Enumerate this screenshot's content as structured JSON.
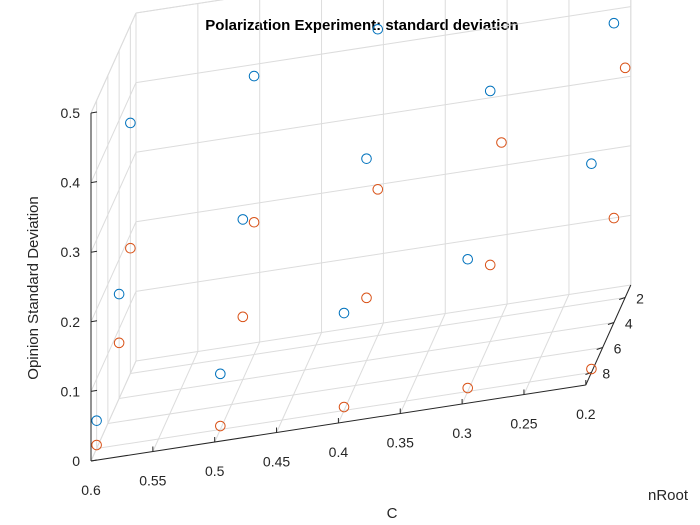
{
  "chart_data": {
    "type": "scatter",
    "title": "Polarization Experiment: standard deviation",
    "xlabel": "C",
    "ylabel": "nRoot",
    "zlabel": "Opinion Standard Deviation",
    "xlim": [
      0.2,
      0.6
    ],
    "ylim": [
      1,
      9
    ],
    "zlim": [
      0,
      0.5
    ],
    "x_ticks": [
      "0.6",
      "0.55",
      "0.5",
      "0.45",
      "0.4",
      "0.35",
      "0.3",
      "0.25",
      "0.2"
    ],
    "y_ticks": [
      "2",
      "4",
      "6",
      "8"
    ],
    "z_ticks": [
      "0",
      "0.1",
      "0.2",
      "0.3",
      "0.4",
      "0.5"
    ],
    "grid": true,
    "series": [
      {
        "color": "#0072BD",
        "points": [
          {
            "x": 0.6,
            "y": 8,
            "z": 0.04
          },
          {
            "x": 0.5,
            "y": 8,
            "z": 0.08
          },
          {
            "x": 0.4,
            "y": 8,
            "z": 0.14
          },
          {
            "x": 0.3,
            "y": 8,
            "z": 0.19
          },
          {
            "x": 0.2,
            "y": 8,
            "z": 0.3
          },
          {
            "x": 0.6,
            "y": 4,
            "z": 0.15
          },
          {
            "x": 0.5,
            "y": 4,
            "z": 0.23
          },
          {
            "x": 0.4,
            "y": 4,
            "z": 0.29
          },
          {
            "x": 0.3,
            "y": 4,
            "z": 0.36
          },
          {
            "x": 0.2,
            "y": 4,
            "z": 0.43
          },
          {
            "x": 0.6,
            "y": 2,
            "z": 0.36
          },
          {
            "x": 0.5,
            "y": 2,
            "z": 0.4
          },
          {
            "x": 0.4,
            "y": 2,
            "z": 0.44
          },
          {
            "x": 0.3,
            "y": 2,
            "z": 0.5
          },
          {
            "x": 0.2,
            "y": 2,
            "z": 0.61
          }
        ]
      },
      {
        "color": "#D95319",
        "points": [
          {
            "x": 0.6,
            "y": 8,
            "z": 0.005
          },
          {
            "x": 0.5,
            "y": 8,
            "z": 0.005
          },
          {
            "x": 0.4,
            "y": 8,
            "z": 0.005
          },
          {
            "x": 0.3,
            "y": 8,
            "z": 0.005
          },
          {
            "x": 0.2,
            "y": 8,
            "z": 0.005
          },
          {
            "x": 0.6,
            "y": 4,
            "z": 0.08
          },
          {
            "x": 0.5,
            "y": 4,
            "z": 0.09
          },
          {
            "x": 0.4,
            "y": 4,
            "z": 0.09
          },
          {
            "x": 0.3,
            "y": 4,
            "z": 0.11
          },
          {
            "x": 0.2,
            "y": 4,
            "z": 0.15
          },
          {
            "x": 0.6,
            "y": 2,
            "z": 0.18
          },
          {
            "x": 0.5,
            "y": 2,
            "z": 0.19
          },
          {
            "x": 0.4,
            "y": 2,
            "z": 0.21
          },
          {
            "x": 0.3,
            "y": 2,
            "z": 0.25
          },
          {
            "x": 0.2,
            "y": 2,
            "z": 0.33
          }
        ]
      }
    ]
  }
}
